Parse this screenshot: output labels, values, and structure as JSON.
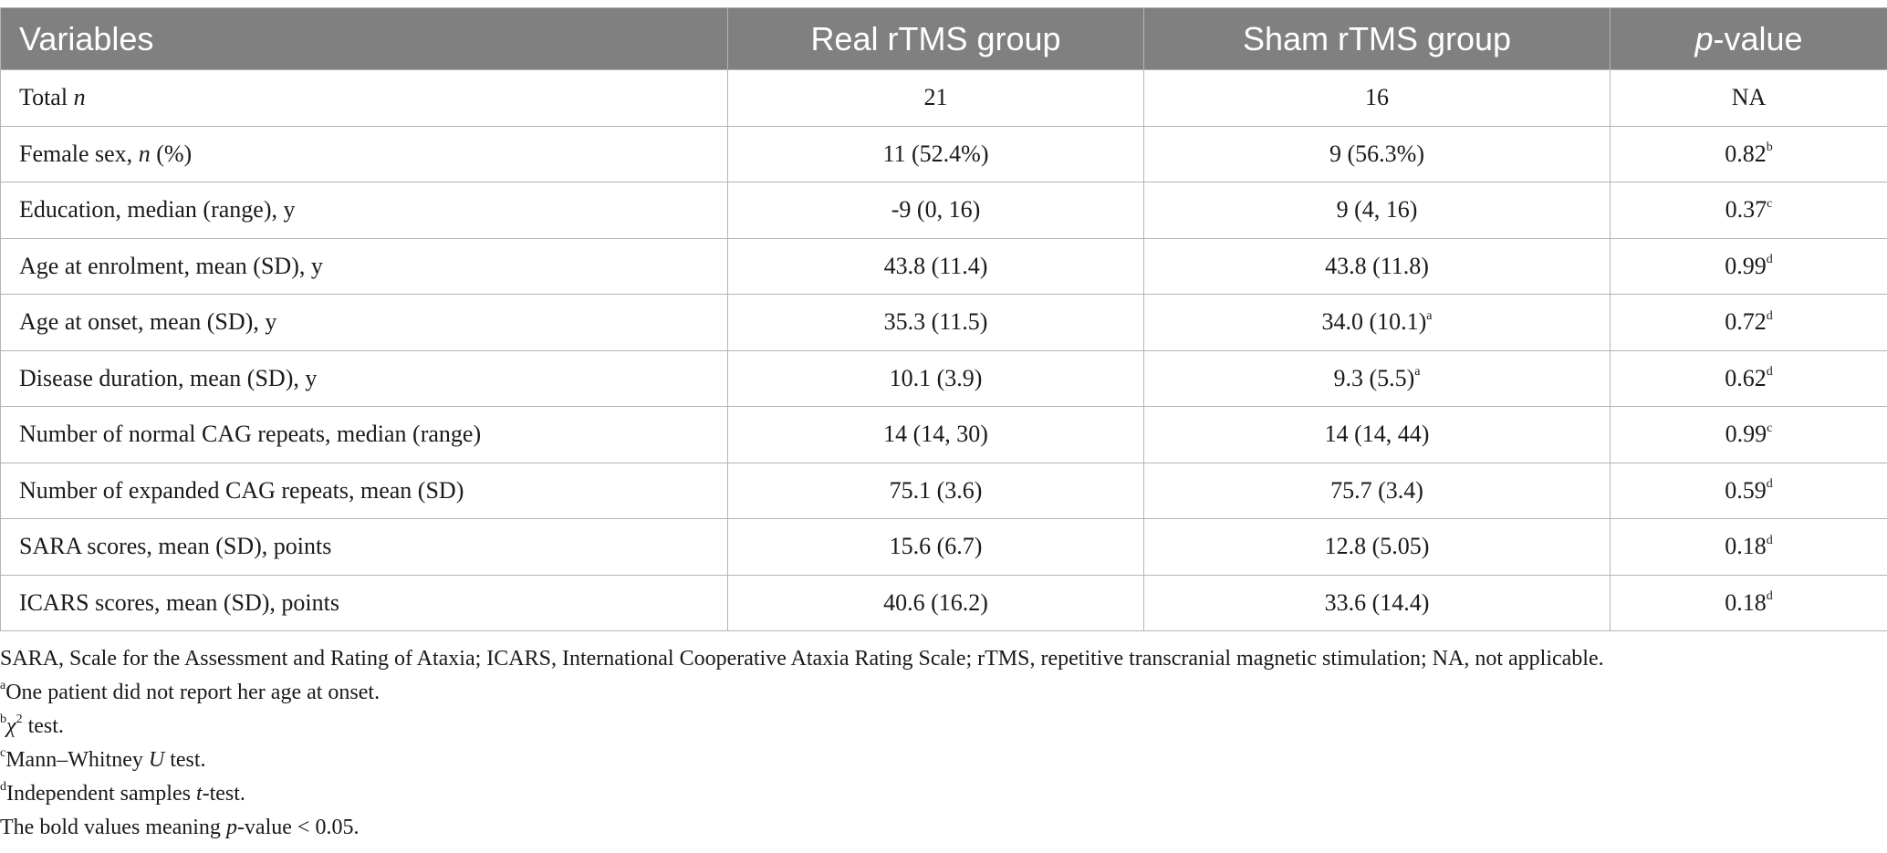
{
  "table": {
    "headers": {
      "variables": "Variables",
      "real": "Real rTMS group",
      "sham": "Sham rTMS group",
      "p_italic": "p",
      "p_rest": "-value"
    },
    "rows": [
      {
        "label": "Total ",
        "label_italic": "n",
        "label_tail": "",
        "real": "21",
        "real_sup": "",
        "sham": "16",
        "sham_sup": "",
        "p": "NA",
        "p_sup": ""
      },
      {
        "label": "Female sex, ",
        "label_italic": "n",
        "label_tail": " (%)",
        "real": "11 (52.4%)",
        "real_sup": "",
        "sham": "9 (56.3%)",
        "sham_sup": "",
        "p": "0.82",
        "p_sup": "b"
      },
      {
        "label": "Education, median (range), y",
        "label_italic": "",
        "label_tail": "",
        "real": "-9 (0, 16)",
        "real_sup": "",
        "sham": "9 (4, 16)",
        "sham_sup": "",
        "p": "0.37",
        "p_sup": "c"
      },
      {
        "label": "Age at enrolment, mean (SD), y",
        "label_italic": "",
        "label_tail": "",
        "real": "43.8 (11.4)",
        "real_sup": "",
        "sham": "43.8 (11.8)",
        "sham_sup": "",
        "p": "0.99",
        "p_sup": "d"
      },
      {
        "label": "Age at onset, mean (SD), y",
        "label_italic": "",
        "label_tail": "",
        "real": "35.3 (11.5)",
        "real_sup": "",
        "sham": "34.0 (10.1)",
        "sham_sup": "a",
        "p": "0.72",
        "p_sup": "d"
      },
      {
        "label": "Disease duration, mean (SD), y",
        "label_italic": "",
        "label_tail": "",
        "real": "10.1 (3.9)",
        "real_sup": "",
        "sham": "9.3 (5.5)",
        "sham_sup": "a",
        "p": "0.62",
        "p_sup": "d"
      },
      {
        "label": "Number of normal CAG repeats, median (range)",
        "label_italic": "",
        "label_tail": "",
        "real": "14 (14, 30)",
        "real_sup": "",
        "sham": "14 (14, 44)",
        "sham_sup": "",
        "p": "0.99",
        "p_sup": "c"
      },
      {
        "label": "Number of expanded CAG repeats, mean (SD)",
        "label_italic": "",
        "label_tail": "",
        "real": "75.1 (3.6)",
        "real_sup": "",
        "sham": "75.7 (3.4)",
        "sham_sup": "",
        "p": "0.59",
        "p_sup": "d"
      },
      {
        "label": "SARA scores, mean (SD), points",
        "label_italic": "",
        "label_tail": "",
        "real": "15.6 (6.7)",
        "real_sup": "",
        "sham": "12.8 (5.05)",
        "sham_sup": "",
        "p": "0.18",
        "p_sup": "d"
      },
      {
        "label": "ICARS scores, mean (SD), points",
        "label_italic": "",
        "label_tail": "",
        "real": "40.6 (16.2)",
        "real_sup": "",
        "sham": "33.6 (14.4)",
        "sham_sup": "",
        "p": "0.18",
        "p_sup": "d"
      }
    ]
  },
  "notes": {
    "abbreviations": "SARA, Scale for the Assessment and Rating of Ataxia; ICARS, International Cooperative Ataxia Rating Scale; rTMS, repetitive transcranial magnetic stimulation; NA, not applicable.",
    "a": {
      "marker": "a",
      "text": "One patient did not report her age at onset."
    },
    "b": {
      "marker": "b",
      "chi": "χ",
      "sq": "2",
      "text": " test."
    },
    "c": {
      "marker": "c",
      "pre": "Mann–Whitney ",
      "italic": "U",
      "post": " test."
    },
    "d": {
      "marker": "d",
      "pre": "Independent samples ",
      "italic": "t",
      "post": "-test."
    },
    "bold": {
      "pre": "The bold values meaning ",
      "italic": "p",
      "post": "-value < 0.05."
    }
  }
}
